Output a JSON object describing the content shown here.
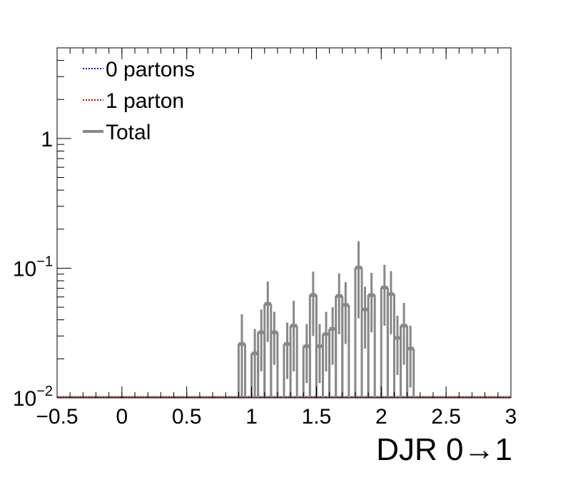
{
  "chart_data": {
    "type": "histogram",
    "xlabel": "DJR 0→1",
    "xlim": [
      -0.5,
      3.0
    ],
    "ylim": [
      0.01,
      5.0
    ],
    "yscale": "log",
    "x_ticks": [
      {
        "value": -0.5,
        "label": "−0.5"
      },
      {
        "value": 0,
        "label": "0"
      },
      {
        "value": 0.5,
        "label": "0.5"
      },
      {
        "value": 1,
        "label": "1"
      },
      {
        "value": 1.5,
        "label": "1.5"
      },
      {
        "value": 2,
        "label": "2"
      },
      {
        "value": 2.5,
        "label": "2.5"
      },
      {
        "value": 3,
        "label": "3"
      }
    ],
    "y_ticks": [
      {
        "value": 0.01,
        "base": "10",
        "exp": "−2"
      },
      {
        "value": 0.1,
        "base": "10",
        "exp": "−1"
      },
      {
        "value": 1,
        "base": "1",
        "exp": ""
      }
    ],
    "bin_width": 0.05,
    "series": [
      {
        "name": "0 partons",
        "style": "dotted",
        "color": "#0000cc",
        "bins": [
          {
            "x": 0.9,
            "y": 0.026,
            "err": 0.018
          },
          {
            "x": 1.0,
            "y": 0.022,
            "err": 0.012
          },
          {
            "x": 1.05,
            "y": 0.032,
            "err": 0.016
          },
          {
            "x": 1.1,
            "y": 0.053,
            "err": 0.026
          },
          {
            "x": 1.15,
            "y": 0.032,
            "err": 0.014
          }
        ]
      },
      {
        "name": "1 parton",
        "style": "dotted",
        "color": "#cc0000",
        "bins": [
          {
            "x": 1.25,
            "y": 0.026,
            "err": 0.012
          },
          {
            "x": 1.3,
            "y": 0.036,
            "err": 0.02
          },
          {
            "x": 1.4,
            "y": 0.025,
            "err": 0.012
          },
          {
            "x": 1.45,
            "y": 0.062,
            "err": 0.032
          },
          {
            "x": 1.5,
            "y": 0.025,
            "err": 0.012
          },
          {
            "x": 1.55,
            "y": 0.031,
            "err": 0.015
          },
          {
            "x": 1.6,
            "y": 0.034,
            "err": 0.016
          },
          {
            "x": 1.65,
            "y": 0.061,
            "err": 0.03
          },
          {
            "x": 1.7,
            "y": 0.052,
            "err": 0.026
          },
          {
            "x": 1.8,
            "y": 0.101,
            "err": 0.06
          },
          {
            "x": 1.85,
            "y": 0.048,
            "err": 0.024
          },
          {
            "x": 1.9,
            "y": 0.062,
            "err": 0.03
          },
          {
            "x": 2.0,
            "y": 0.071,
            "err": 0.035
          },
          {
            "x": 2.05,
            "y": 0.063,
            "err": 0.032
          },
          {
            "x": 2.1,
            "y": 0.029,
            "err": 0.014
          },
          {
            "x": 2.15,
            "y": 0.036,
            "err": 0.018
          },
          {
            "x": 2.2,
            "y": 0.024,
            "err": 0.012
          }
        ]
      },
      {
        "name": "Total",
        "style": "solid",
        "color": "#888888",
        "bins": [
          {
            "x": 0.9,
            "y": 0.026,
            "err": 0.018
          },
          {
            "x": 1.0,
            "y": 0.022,
            "err": 0.012
          },
          {
            "x": 1.05,
            "y": 0.032,
            "err": 0.016
          },
          {
            "x": 1.1,
            "y": 0.053,
            "err": 0.026
          },
          {
            "x": 1.15,
            "y": 0.032,
            "err": 0.014
          },
          {
            "x": 1.25,
            "y": 0.026,
            "err": 0.012
          },
          {
            "x": 1.3,
            "y": 0.036,
            "err": 0.02
          },
          {
            "x": 1.4,
            "y": 0.025,
            "err": 0.012
          },
          {
            "x": 1.45,
            "y": 0.062,
            "err": 0.032
          },
          {
            "x": 1.5,
            "y": 0.025,
            "err": 0.012
          },
          {
            "x": 1.55,
            "y": 0.031,
            "err": 0.015
          },
          {
            "x": 1.6,
            "y": 0.034,
            "err": 0.016
          },
          {
            "x": 1.65,
            "y": 0.061,
            "err": 0.03
          },
          {
            "x": 1.7,
            "y": 0.052,
            "err": 0.026
          },
          {
            "x": 1.8,
            "y": 0.101,
            "err": 0.06
          },
          {
            "x": 1.85,
            "y": 0.048,
            "err": 0.024
          },
          {
            "x": 1.9,
            "y": 0.062,
            "err": 0.03
          },
          {
            "x": 2.0,
            "y": 0.071,
            "err": 0.035
          },
          {
            "x": 2.05,
            "y": 0.063,
            "err": 0.032
          },
          {
            "x": 2.1,
            "y": 0.029,
            "err": 0.014
          },
          {
            "x": 2.15,
            "y": 0.036,
            "err": 0.018
          },
          {
            "x": 2.2,
            "y": 0.024,
            "err": 0.012
          }
        ]
      }
    ],
    "legend": {
      "placement": "top-left",
      "entries": [
        {
          "label": "0 partons",
          "style": "dotted",
          "color": "#0000cc"
        },
        {
          "label": "1 parton",
          "style": "dotted",
          "color": "#cc0000"
        },
        {
          "label": "Total",
          "style": "solid",
          "color": "#888888"
        }
      ]
    }
  }
}
